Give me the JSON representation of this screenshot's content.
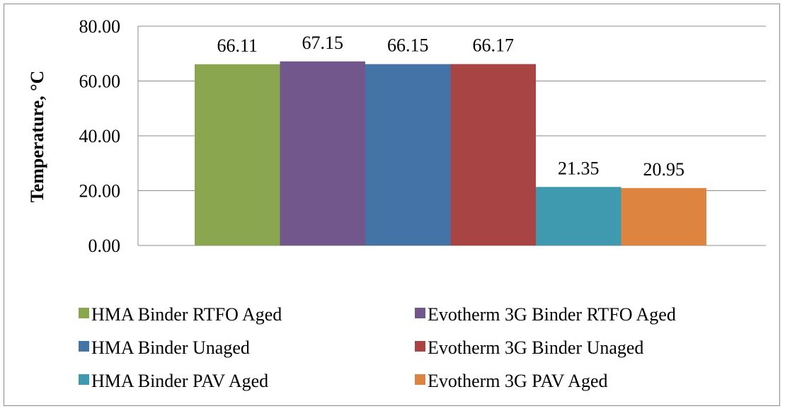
{
  "chart_data": {
    "type": "bar",
    "title": "",
    "xlabel": "",
    "ylabel": "Temperature, °C",
    "ylim": [
      0,
      80
    ],
    "yticks": [
      "0.00",
      "20.00",
      "40.00",
      "60.00",
      "80.00"
    ],
    "grid": true,
    "legend_position": "bottom",
    "series": [
      {
        "name": "HMA Binder RTFO Aged",
        "value": 66.11,
        "label": "66.11",
        "color": "#8aa64e"
      },
      {
        "name": "Evotherm 3G Binder RTFO Aged",
        "value": 67.15,
        "label": "67.15",
        "color": "#72578d"
      },
      {
        "name": "HMA Binder Unaged",
        "value": 66.15,
        "label": "66.15",
        "color": "#4473a7"
      },
      {
        "name": "Evotherm 3G Binder Unaged",
        "value": 66.17,
        "label": "66.17",
        "color": "#a84544"
      },
      {
        "name": "HMA Binder PAV Aged",
        "value": 21.35,
        "label": "21.35",
        "color": "#3f9ab0"
      },
      {
        "name": "Evotherm 3G PAV Aged",
        "value": 20.95,
        "label": "20.95",
        "color": "#dd8440"
      }
    ]
  }
}
